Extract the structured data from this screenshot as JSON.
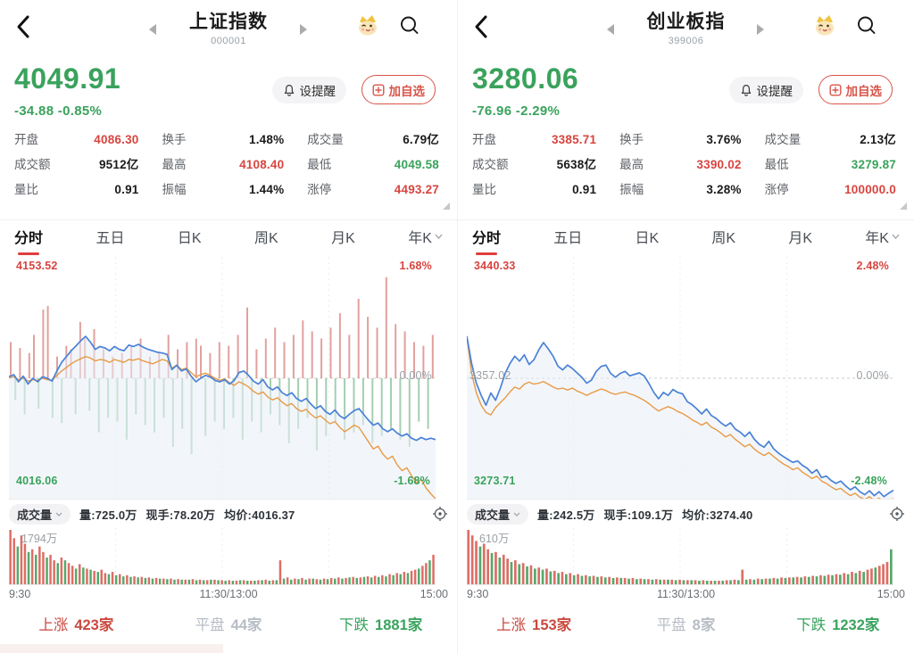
{
  "colors": {
    "up_red": "#d8443f",
    "down_green": "#3aa25c",
    "accent_red": "#e03c3c",
    "price_line": "#4a82d6",
    "avg_line": "#e89a45",
    "area_fill": "#e7eef5",
    "bar_up": "#d98a86",
    "bar_down": "#8fc29d",
    "vol_up": "#dd6e66",
    "vol_down": "#57a86b"
  },
  "panels": [
    {
      "header": {
        "title": "上证指数",
        "code": "000001"
      },
      "alert_button": "设提醒",
      "watch_button": "加自选",
      "price": "4049.91",
      "change": "-34.88  -0.85%",
      "trend_cls": "green",
      "stats": [
        {
          "label": "开盘",
          "value": "4086.30",
          "cls": "red"
        },
        {
          "label": "换手",
          "value": "1.48%",
          "cls": "dark"
        },
        {
          "label": "成交量",
          "value": "6.79亿",
          "cls": "dark"
        },
        {
          "label": "成交额",
          "value": "9512亿",
          "cls": "dark"
        },
        {
          "label": "最高",
          "value": "4108.40",
          "cls": "red"
        },
        {
          "label": "最低",
          "value": "4049.58",
          "cls": "green"
        },
        {
          "label": "量比",
          "value": "0.91",
          "cls": "dark"
        },
        {
          "label": "振幅",
          "value": "1.44%",
          "cls": "dark"
        },
        {
          "label": "涨停",
          "value": "4493.27",
          "cls": "red"
        }
      ],
      "tabs": [
        {
          "label": "分时",
          "state": "active"
        },
        {
          "label": "五日",
          "state": "idle"
        },
        {
          "label": "日K",
          "state": "idle"
        },
        {
          "label": "周K",
          "state": "idle"
        },
        {
          "label": "月K",
          "state": "idle"
        },
        {
          "label": "年K",
          "state": "idle"
        }
      ],
      "chart_labels": {
        "top_left": "4153.52",
        "top_right": "1.68%",
        "mid_right": "0.00%",
        "bottom_left": "4016.06",
        "bottom_right": "-1.68%"
      },
      "volume_header": {
        "name": "成交量",
        "vol": "量:725.0万",
        "cur": "现手:78.20万",
        "avg": "均价:4016.37"
      },
      "volume_max": "1794万",
      "time_axis": {
        "open": "9:30",
        "mid": "11:30/13:00",
        "close": "15:00"
      },
      "breadth": {
        "up_label": "上涨",
        "up_value": "423家",
        "flat_label": "平盘",
        "flat_value": "44家",
        "down_label": "下跌",
        "down_value": "1881家"
      }
    },
    {
      "header": {
        "title": "创业板指",
        "code": "399006"
      },
      "alert_button": "设提醒",
      "watch_button": "加自选",
      "price": "3280.06",
      "change": "-76.96  -2.29%",
      "trend_cls": "green",
      "stats": [
        {
          "label": "开盘",
          "value": "3385.71",
          "cls": "red"
        },
        {
          "label": "换手",
          "value": "3.76%",
          "cls": "dark"
        },
        {
          "label": "成交量",
          "value": "2.13亿",
          "cls": "dark"
        },
        {
          "label": "成交额",
          "value": "5638亿",
          "cls": "dark"
        },
        {
          "label": "最高",
          "value": "3390.02",
          "cls": "red"
        },
        {
          "label": "最低",
          "value": "3279.87",
          "cls": "green"
        },
        {
          "label": "量比",
          "value": "0.91",
          "cls": "dark"
        },
        {
          "label": "振幅",
          "value": "3.28%",
          "cls": "dark"
        },
        {
          "label": "涨停",
          "value": "100000.0",
          "cls": "red"
        }
      ],
      "tabs": [
        {
          "label": "分时",
          "state": "active"
        },
        {
          "label": "五日",
          "state": "idle"
        },
        {
          "label": "日K",
          "state": "idle"
        },
        {
          "label": "周K",
          "state": "idle"
        },
        {
          "label": "月K",
          "state": "idle"
        },
        {
          "label": "年K",
          "state": "idle"
        }
      ],
      "chart_labels": {
        "top_left": "3440.33",
        "top_right": "2.48%",
        "mid_left": "3357.02",
        "mid_right": "0.00%",
        "bottom_left": "3273.71",
        "bottom_right": "-2.48%"
      },
      "volume_header": {
        "name": "成交量",
        "vol": "量:242.5万",
        "cur": "现手:109.1万",
        "avg": "均价:3274.40"
      },
      "volume_max": "610万",
      "time_axis": {
        "open": "9:30",
        "mid": "11:30/13:00",
        "close": "15:00"
      },
      "breadth": {
        "up_label": "上涨",
        "up_value": "153家",
        "flat_label": "平盘",
        "flat_value": "8家",
        "down_label": "下跌",
        "down_value": "1232家"
      }
    }
  ],
  "chart_data": [
    {
      "type": "line",
      "title": "上证指数 分时",
      "x_ticks": [
        "9:30",
        "11:30/13:00",
        "15:00"
      ],
      "y_refs": {
        "high": 4153.52,
        "prev_close": 4084.79,
        "low": 4016.06,
        "pct_range": 1.68
      },
      "ylim": 1.68,
      "price_line": [
        0.02,
        0.05,
        -0.05,
        0.03,
        -0.08,
        0.0,
        -0.05,
        0.02,
        0.0,
        -0.04,
        0.1,
        0.22,
        0.3,
        0.38,
        0.45,
        0.52,
        0.58,
        0.5,
        0.4,
        0.44,
        0.42,
        0.38,
        0.44,
        0.4,
        0.38,
        0.46,
        0.44,
        0.47,
        0.43,
        0.4,
        0.38,
        0.36,
        0.35,
        0.33,
        0.12,
        0.18,
        0.1,
        0.13,
        0.03,
        -0.05,
        0.0,
        0.04,
        0.02,
        -0.03,
        -0.05,
        -0.02,
        -0.08,
        -0.03,
        0.08,
        0.1,
        0.04,
        -0.04,
        -0.08,
        -0.02,
        -0.12,
        -0.16,
        -0.12,
        -0.2,
        -0.24,
        -0.2,
        -0.28,
        -0.32,
        -0.28,
        -0.36,
        -0.42,
        -0.38,
        -0.46,
        -0.5,
        -0.44,
        -0.52,
        -0.56,
        -0.5,
        -0.45,
        -0.42,
        -0.5,
        -0.58,
        -0.65,
        -0.62,
        -0.7,
        -0.74,
        -0.7,
        -0.76,
        -0.8,
        -0.77,
        -0.83,
        -0.86,
        -0.82,
        -0.85,
        -0.83,
        -0.85
      ],
      "avg_line": [
        0.01,
        0.02,
        -0.02,
        0.0,
        -0.04,
        -0.02,
        -0.03,
        0.0,
        -0.02,
        -0.03,
        0.04,
        0.1,
        0.15,
        0.2,
        0.24,
        0.27,
        0.3,
        0.28,
        0.24,
        0.26,
        0.25,
        0.22,
        0.26,
        0.24,
        0.22,
        0.26,
        0.25,
        0.27,
        0.24,
        0.22,
        0.2,
        0.23,
        0.26,
        0.24,
        0.14,
        0.18,
        0.12,
        0.14,
        0.08,
        0.02,
        0.05,
        0.07,
        0.04,
        0.0,
        -0.03,
        -0.01,
        -0.06,
        -0.1,
        -0.05,
        -0.08,
        -0.12,
        -0.18,
        -0.22,
        -0.19,
        -0.26,
        -0.3,
        -0.27,
        -0.33,
        -0.38,
        -0.35,
        -0.42,
        -0.46,
        -0.43,
        -0.5,
        -0.55,
        -0.52,
        -0.58,
        -0.63,
        -0.6,
        -0.68,
        -0.74,
        -0.7,
        -0.65,
        -0.68,
        -0.78,
        -0.88,
        -0.98,
        -0.94,
        -1.05,
        -1.12,
        -1.08,
        -1.2,
        -1.28,
        -1.24,
        -1.35,
        -1.45,
        -1.4,
        -1.52,
        -1.6,
        -1.67
      ],
      "tick_bars": [
        0.5,
        -0.3,
        0.42,
        -0.5,
        0.35,
        0.6,
        -0.42,
        0.95,
        1.0,
        -0.55,
        0.3,
        -0.62,
        0.45,
        0.4,
        -0.5,
        0.78,
        0.55,
        -0.45,
        0.68,
        -0.75,
        0.4,
        -0.55,
        0.3,
        -0.6,
        0.35,
        -0.85,
        0.45,
        -0.5,
        0.55,
        -0.65,
        0.3,
        -0.75,
        0.35,
        -0.55,
        0.6,
        -0.95,
        0.4,
        -0.7,
        0.5,
        -1.05,
        0.55,
        0.45,
        -0.8,
        0.35,
        -0.6,
        0.5,
        -0.7,
        0.45,
        -0.55,
        0.6,
        -0.85,
        0.98,
        -0.6,
        0.4,
        -0.75,
        0.55,
        -0.5,
        0.7,
        -0.65,
        0.5,
        -0.9,
        0.6,
        -0.7,
        0.8,
        -0.55,
        0.65,
        -1.0,
        0.55,
        -0.8,
        0.7,
        -0.6,
        0.9,
        -0.85,
        0.6,
        -0.75,
        1.1,
        -0.65,
        0.85,
        -0.9,
        0.7,
        -0.8,
        1.4,
        -0.7,
        0.75,
        -0.85,
        0.65,
        -0.95,
        0.5,
        -0.6,
        0.45,
        -0.7,
        0.6
      ],
      "volume": [
        100,
        85,
        -70,
        90,
        75,
        -60,
        65,
        -55,
        70,
        60,
        -50,
        55,
        45,
        -40,
        50,
        -45,
        40,
        35,
        -30,
        38,
        -32,
        30,
        -28,
        26,
        -24,
        28,
        22,
        -20,
        24,
        -18,
        20,
        -16,
        18,
        -15,
        16,
        -14,
        15,
        -13,
        14,
        -12,
        13,
        -12,
        12,
        -11,
        12,
        -10,
        11,
        -10,
        10,
        -10,
        11,
        -9,
        10,
        -9,
        9,
        -10,
        10,
        -9,
        9,
        -8,
        9,
        -8,
        8,
        -9,
        9,
        -8,
        8,
        -8,
        9,
        -9,
        10,
        -8,
        9,
        -9,
        45,
        -12,
        14,
        -10,
        12,
        -11,
        13,
        -10,
        12,
        -12,
        11,
        -10,
        12,
        -11,
        13,
        -12,
        14,
        -12,
        13,
        -14,
        15,
        -13,
        14,
        -15,
        16,
        -14,
        17,
        -15,
        18,
        -16,
        20,
        -18,
        22,
        -20,
        24,
        -22,
        26,
        28,
        -30,
        35,
        40,
        -45,
        55
      ]
    },
    {
      "type": "line",
      "title": "创业板指 分时",
      "x_ticks": [
        "9:30",
        "11:30/13:00",
        "15:00"
      ],
      "y_refs": {
        "high": 3440.33,
        "prev_close": 3357.02,
        "low": 3273.71,
        "pct_range": 2.48
      },
      "ylim": 2.48,
      "price_line": [
        0.86,
        0.3,
        -0.1,
        -0.35,
        -0.55,
        -0.3,
        -0.45,
        -0.2,
        0.1,
        0.3,
        0.45,
        0.35,
        0.48,
        0.28,
        0.38,
        0.58,
        0.73,
        0.6,
        0.45,
        0.25,
        0.17,
        0.27,
        0.2,
        0.11,
        0.02,
        -0.1,
        -0.04,
        0.14,
        0.24,
        0.27,
        0.1,
        0.02,
        0.1,
        0.14,
        0.05,
        0.08,
        0.11,
        0.05,
        -0.11,
        -0.29,
        -0.42,
        -0.29,
        -0.35,
        -0.23,
        -0.29,
        -0.32,
        -0.48,
        -0.54,
        -0.63,
        -0.73,
        -0.63,
        -0.76,
        -0.82,
        -0.91,
        -0.98,
        -0.91,
        -1.04,
        -1.1,
        -1.19,
        -1.1,
        -1.25,
        -1.35,
        -1.41,
        -1.29,
        -1.44,
        -1.53,
        -1.6,
        -1.66,
        -1.72,
        -1.69,
        -1.78,
        -1.84,
        -1.94,
        -1.87,
        -2.03,
        -2.0,
        -2.09,
        -2.15,
        -2.1,
        -2.2,
        -2.28,
        -2.22,
        -2.32,
        -2.38,
        -2.3,
        -2.4,
        -2.32,
        -2.42,
        -2.35,
        -2.29
      ],
      "avg_line": [
        0.85,
        0.1,
        -0.3,
        -0.55,
        -0.7,
        -0.75,
        -0.6,
        -0.5,
        -0.4,
        -0.28,
        -0.18,
        -0.22,
        -0.12,
        -0.08,
        -0.12,
        -0.1,
        -0.07,
        -0.12,
        -0.18,
        -0.22,
        -0.2,
        -0.24,
        -0.2,
        -0.26,
        -0.3,
        -0.35,
        -0.3,
        -0.26,
        -0.22,
        -0.25,
        -0.3,
        -0.33,
        -0.3,
        -0.28,
        -0.32,
        -0.35,
        -0.4,
        -0.45,
        -0.52,
        -0.6,
        -0.67,
        -0.62,
        -0.58,
        -0.62,
        -0.68,
        -0.72,
        -0.78,
        -0.85,
        -0.9,
        -0.96,
        -0.9,
        -1.0,
        -1.05,
        -1.12,
        -1.2,
        -1.15,
        -1.25,
        -1.32,
        -1.4,
        -1.35,
        -1.45,
        -1.52,
        -1.58,
        -1.52,
        -1.6,
        -1.68,
        -1.75,
        -1.8,
        -1.87,
        -1.83,
        -1.92,
        -1.98,
        -2.05,
        -2.0,
        -2.1,
        -2.15,
        -2.22,
        -2.28,
        -2.25,
        -2.33,
        -2.4,
        -2.35,
        -2.43,
        -2.48,
        -2.42,
        -2.5,
        -2.45,
        -2.52,
        -2.5,
        -2.46
      ],
      "volume": [
        100,
        90,
        80,
        -70,
        75,
        65,
        -58,
        60,
        -50,
        55,
        48,
        -42,
        45,
        -38,
        40,
        -34,
        36,
        -30,
        32,
        -28,
        30,
        -25,
        26,
        -22,
        24,
        -20,
        22,
        -18,
        20,
        -17,
        18,
        -16,
        17,
        -15,
        16,
        -14,
        15,
        -13,
        14,
        -13,
        13,
        -12,
        13,
        -11,
        12,
        -11,
        11,
        -10,
        11,
        -10,
        10,
        -10,
        10,
        -9,
        10,
        -9,
        9,
        -9,
        9,
        -8,
        9,
        -8,
        8,
        -8,
        8,
        -8,
        9,
        -9,
        10,
        -9,
        28,
        -10,
        11,
        -10,
        12,
        -11,
        12,
        -12,
        13,
        -12,
        14,
        -13,
        14,
        -14,
        15,
        -14,
        16,
        -15,
        17,
        -16,
        18,
        -17,
        19,
        -18,
        20,
        -19,
        22,
        -20,
        24,
        -22,
        26,
        -24,
        28,
        30,
        -32,
        35,
        38,
        42,
        -65
      ]
    }
  ]
}
